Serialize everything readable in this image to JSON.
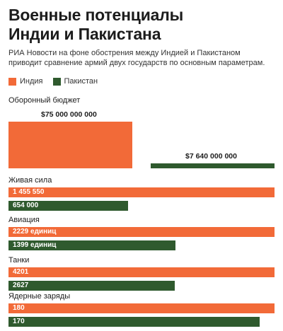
{
  "header": {
    "title_line1": "Военные потенциалы",
    "title_line2": "Индии и Пакистана",
    "subtitle": "РИА Новости на фоне обострения между Индией и Пакистаном приводит сравнение армий двух государств по основным параметрам."
  },
  "colors": {
    "india": "#f26a38",
    "pakistan": "#2f5a2e"
  },
  "legend": [
    {
      "name": "Индия",
      "color": "#f26a38"
    },
    {
      "name": "Пакистан",
      "color": "#2f5a2e"
    }
  ],
  "chart_data": {
    "type": "bar",
    "series_names": [
      "Индия",
      "Пакистан"
    ],
    "budget": {
      "label": "Оборонный бюджет",
      "values": [
        75000000000,
        7640000000
      ],
      "value_labels": [
        "$75 000 000 000",
        "$7 640 000 000"
      ]
    },
    "categories": [
      {
        "label": "Живая сила",
        "values": [
          1455550,
          654000
        ],
        "value_labels": [
          "1 455 550",
          "654 000"
        ],
        "max": 1455550
      },
      {
        "label": "Авиация",
        "values": [
          2229,
          1399
        ],
        "value_labels": [
          "2229 единиц",
          "1399 единиц"
        ],
        "max": 2229
      },
      {
        "label": "Танки",
        "values": [
          4201,
          2627
        ],
        "value_labels": [
          "4201",
          "2627"
        ],
        "max": 4201
      },
      {
        "label": "Ядерные заряды",
        "values": [
          180,
          170
        ],
        "value_labels": [
          "180",
          "170"
        ],
        "max": 180
      }
    ]
  }
}
